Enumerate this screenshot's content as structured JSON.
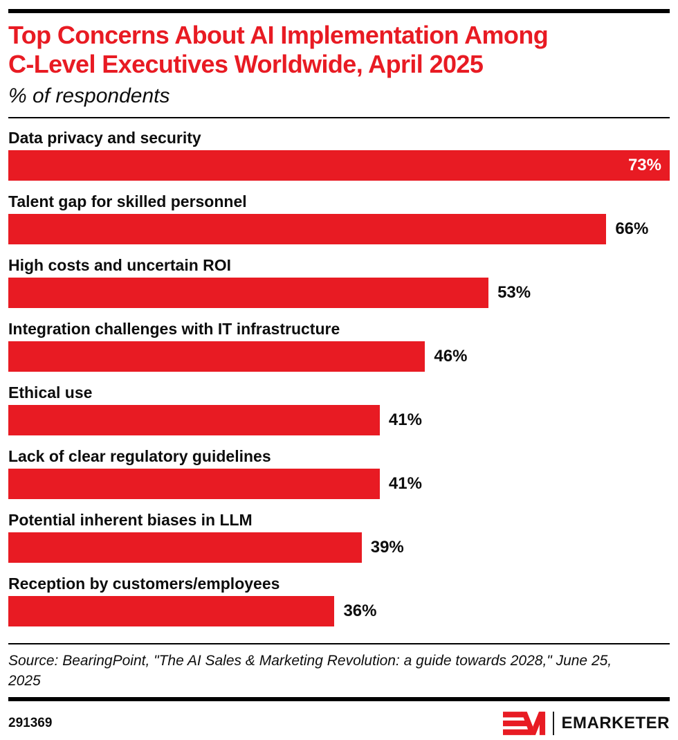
{
  "header": {
    "title_lines": [
      "Top Concerns About AI Implementation Among",
      "C-Level Executives Worldwide, April 2025"
    ],
    "subtitle": "% of respondents"
  },
  "chart_data": {
    "type": "bar",
    "orientation": "horizontal",
    "title": "Top Concerns About AI Implementation Among C-Level Executives Worldwide, April 2025",
    "subtitle": "% of respondents",
    "unit": "%",
    "categories": [
      "Data privacy and security",
      "Talent gap for skilled personnel",
      "High costs and uncertain ROI",
      "Integration challenges with IT infrastructure",
      "Ethical use",
      "Lack of clear regulatory guidelines",
      "Potential inherent biases in LLM",
      "Reception by customers/employees"
    ],
    "values": [
      73,
      66,
      53,
      46,
      41,
      41,
      39,
      36
    ],
    "value_labels": [
      "73%",
      "66%",
      "53%",
      "46%",
      "41%",
      "41%",
      "39%",
      "36%"
    ],
    "xlim": [
      0,
      73
    ],
    "grid": false,
    "legend": "none",
    "bar_color": "#e81b23",
    "value_label_position": "outside-right, inside-white for max bar"
  },
  "footer": {
    "source": "Source: BearingPoint, \"The AI Sales & Marketing Revolution: a guide towards 2028,\" June 25, 2025",
    "chart_id": "291369",
    "brand_name": "EMARKETER"
  },
  "colors": {
    "accent_red": "#e81b23",
    "rule_black": "#000000",
    "text": "#0d0d0d",
    "value_inside": "#ffffff"
  }
}
